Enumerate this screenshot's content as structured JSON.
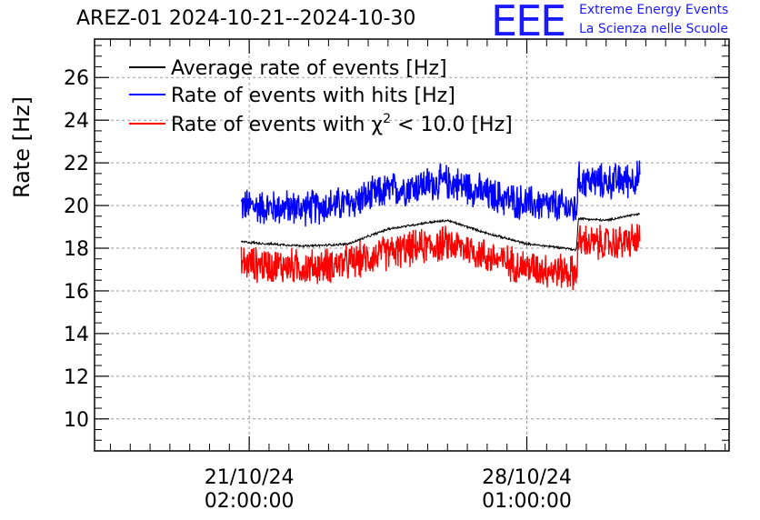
{
  "title": "AREZ-01 2024-10-21--2024-10-30",
  "logo": {
    "mark": "EEE",
    "line1": "Extreme Energy Events",
    "line2": "La Scienza nelle Scuole"
  },
  "chart_data": {
    "type": "line",
    "ylabel": "Rate [Hz]",
    "xlabel": "",
    "ylim": [
      8.5,
      27.8
    ],
    "yticks": [
      10,
      12,
      14,
      16,
      18,
      20,
      22,
      24,
      26
    ],
    "ytick_labels": [
      "10",
      "12",
      "14",
      "16",
      "18",
      "20",
      "22",
      "24",
      "26"
    ],
    "x_ticks": [
      {
        "day": 0.0,
        "date": "21/10/24",
        "time": "02:00:00"
      },
      {
        "day": 7.0,
        "date": "28/10/24",
        "time": "01:00:00"
      }
    ],
    "xlim": [
      -3.9,
      12.1
    ],
    "grid": true,
    "legend_position": "top-left",
    "x_unit": "days since 21/10/24 02:00:00",
    "series": [
      {
        "name": "Average rate of events [Hz]",
        "color": "#000000",
        "x": [
          -0.2,
          0.5,
          1.5,
          2.5,
          3.5,
          4.5,
          5.0,
          5.5,
          6.0,
          7.0,
          7.5,
          8.0,
          8.25,
          8.3,
          9.0,
          9.5,
          9.85
        ],
        "values": [
          18.3,
          18.2,
          18.1,
          18.2,
          18.9,
          19.2,
          19.3,
          19.0,
          18.7,
          18.2,
          18.1,
          18.0,
          17.9,
          19.4,
          19.3,
          19.5,
          19.6
        ]
      },
      {
        "name": "Rate of events with hits [Hz]",
        "color": "#0000ff",
        "x": [
          -0.2,
          0.5,
          1.5,
          2.5,
          3.5,
          4.5,
          5.0,
          5.5,
          6.0,
          7.0,
          7.5,
          8.0,
          8.25,
          8.3,
          9.0,
          9.5,
          9.85
        ],
        "values": [
          20.0,
          19.9,
          19.9,
          20.1,
          20.7,
          21.0,
          21.1,
          20.9,
          20.5,
          20.1,
          20.0,
          19.9,
          19.8,
          21.2,
          21.1,
          21.2,
          21.3
        ],
        "band": 0.75
      },
      {
        "name": "Rate of events with χ² < 10.0 [Hz]",
        "label_prefix": "Rate of events with ",
        "label_symbol": "χ",
        "label_sup": "2",
        "label_suffix": " < 10.0 [Hz]",
        "color": "#ff0000",
        "x": [
          -0.2,
          0.5,
          1.5,
          2.5,
          3.5,
          4.5,
          5.0,
          5.5,
          6.0,
          7.0,
          7.5,
          8.0,
          8.25,
          8.3,
          9.0,
          9.5,
          9.85
        ],
        "values": [
          17.3,
          17.2,
          17.1,
          17.3,
          17.8,
          18.1,
          18.2,
          18.0,
          17.6,
          17.1,
          17.0,
          16.9,
          16.8,
          18.3,
          18.2,
          18.3,
          18.4
        ],
        "band": 0.75
      }
    ]
  }
}
